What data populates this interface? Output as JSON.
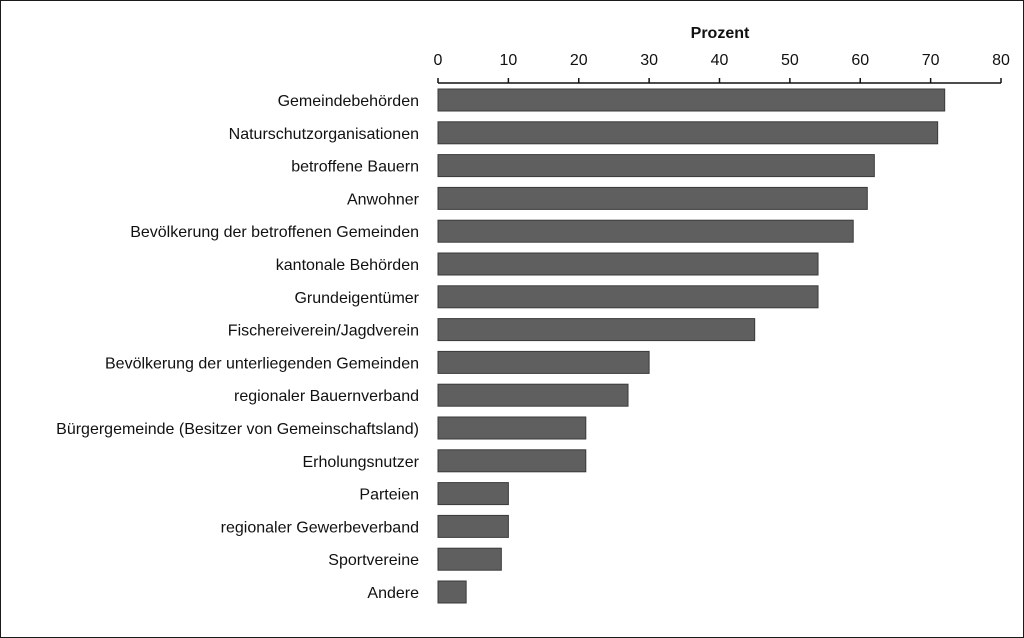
{
  "chart_data": {
    "type": "bar",
    "orientation": "horizontal",
    "title": "",
    "xlabel": "Prozent",
    "ylabel": "",
    "xlim": [
      0,
      80
    ],
    "x_ticks": [
      0,
      10,
      20,
      30,
      40,
      50,
      60,
      70,
      80
    ],
    "axis_position": "top",
    "grid": false,
    "legend": "none",
    "bar_color": "#5f5f5f",
    "bar_edge_color": "#3a3a3a",
    "categories": [
      "Gemeindebehörden",
      "Naturschutzorganisationen",
      "betroffene Bauern",
      "Anwohner",
      "Bevölkerung der betroffenen Gemeinden",
      "kantonale Behörden",
      "Grundeigentümer",
      "Fischereiverein/Jagdverein",
      "Bevölkerung der unterliegenden Gemeinden",
      "regionaler Bauernverband",
      "Bürgergemeinde (Besitzer von Gemeinschaftsland)",
      "Erholungsnutzer",
      "Parteien",
      "regionaler Gewerbeverband",
      "Sportvereine",
      "Andere"
    ],
    "values": [
      72,
      71,
      62,
      61,
      59,
      54,
      54,
      45,
      30,
      27,
      21,
      21,
      10,
      10,
      9,
      4
    ]
  }
}
